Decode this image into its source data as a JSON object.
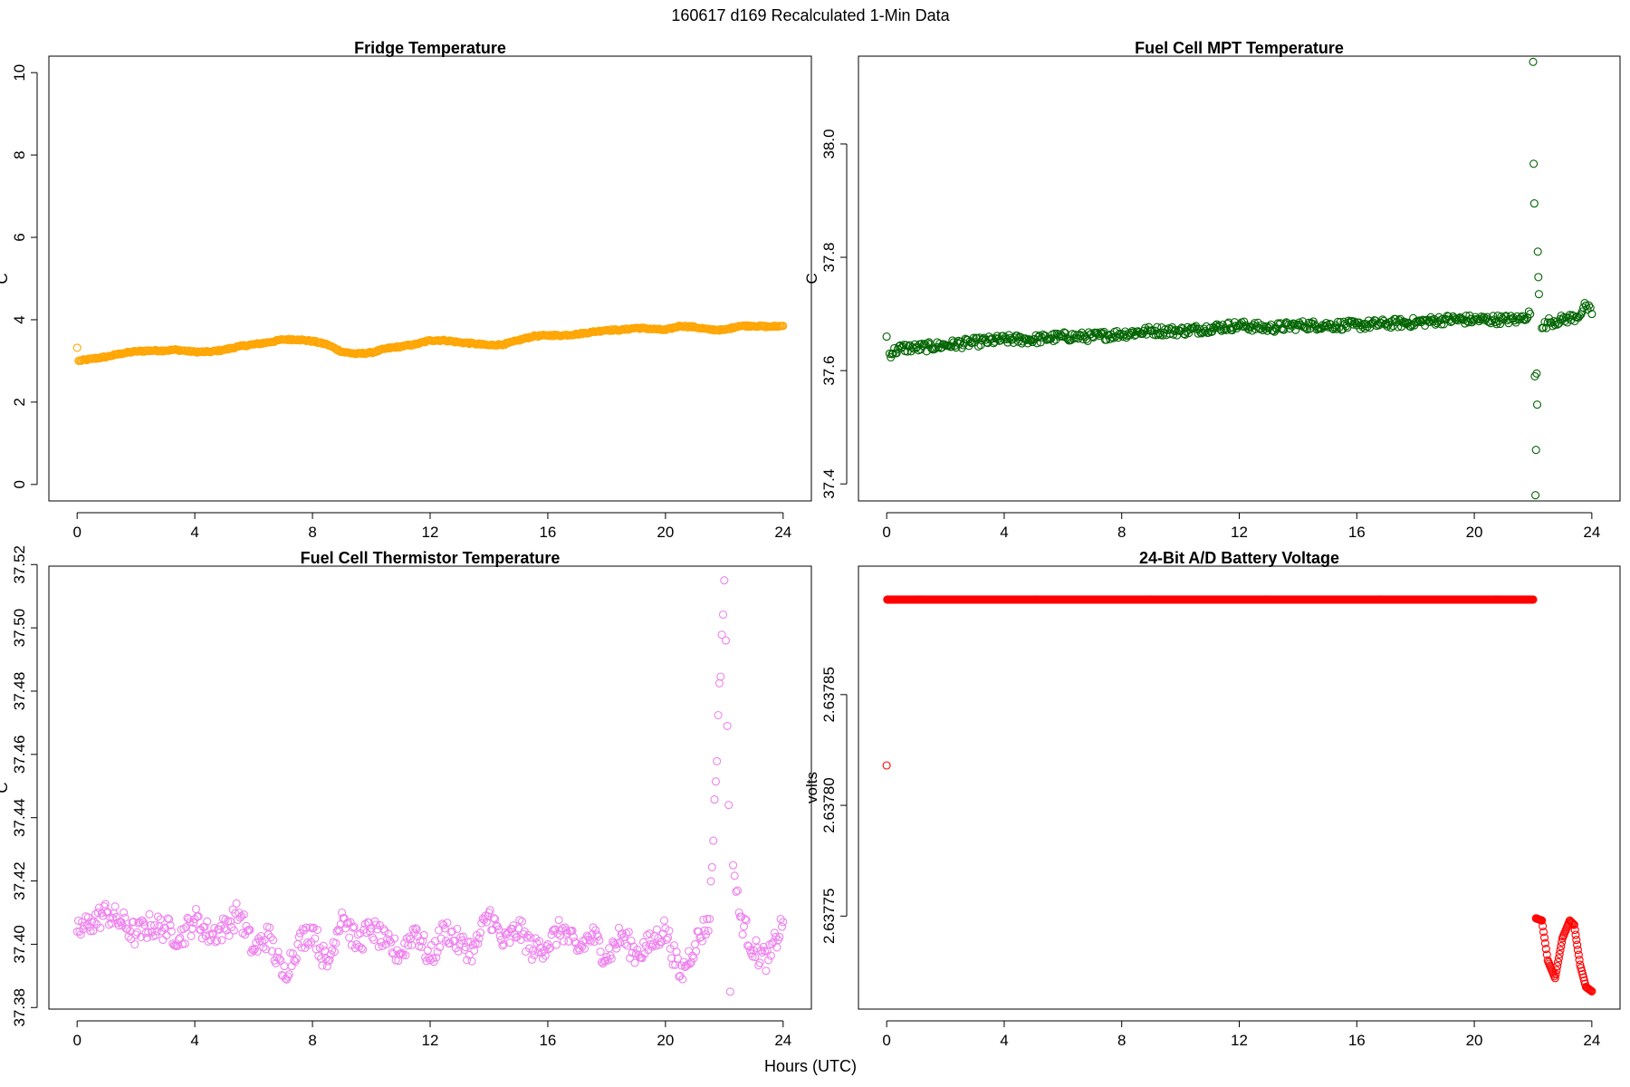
{
  "figure": {
    "suptitle": "160617   d169   Recalculated 1-Min Data",
    "xlabel": "Hours (UTC)"
  },
  "chart_data": [
    {
      "type": "scatter",
      "title": "Fridge Temperature",
      "xlabel": "Hours (UTC)",
      "ylabel": "C",
      "xlim": [
        -0.96,
        24.96
      ],
      "ylim": [
        -0.4,
        10.4
      ],
      "xticks": [
        0,
        4,
        8,
        12,
        16,
        20,
        24
      ],
      "yticks": [
        0,
        2,
        4,
        6,
        8,
        10
      ],
      "ytick_labels": [
        "0",
        "2",
        "4",
        "6",
        "8",
        "10"
      ],
      "color": "#FFA500",
      "series": [
        {
          "name": "Fridge Temperature",
          "x": [
            0,
            0.05,
            0.5,
            1,
            1.5,
            2,
            2.5,
            3,
            3.3,
            3.6,
            4,
            4.5,
            5,
            5.5,
            6,
            6.5,
            7,
            7.5,
            8,
            8.5,
            9,
            9.5,
            10,
            10.5,
            11,
            11.5,
            12,
            12.5,
            13,
            13.5,
            14,
            14.5,
            15,
            15.5,
            16,
            16.5,
            17,
            17.5,
            18,
            18.5,
            19,
            19.5,
            20,
            20.5,
            21,
            21.5,
            22,
            22.5,
            23,
            23.5,
            24
          ],
          "y": [
            3.32,
            3.0,
            3.05,
            3.1,
            3.18,
            3.23,
            3.25,
            3.25,
            3.27,
            3.25,
            3.22,
            3.22,
            3.27,
            3.35,
            3.4,
            3.45,
            3.52,
            3.52,
            3.48,
            3.4,
            3.22,
            3.17,
            3.2,
            3.3,
            3.35,
            3.4,
            3.5,
            3.5,
            3.45,
            3.42,
            3.38,
            3.4,
            3.5,
            3.6,
            3.62,
            3.62,
            3.65,
            3.7,
            3.75,
            3.75,
            3.8,
            3.78,
            3.75,
            3.85,
            3.82,
            3.76,
            3.75,
            3.85,
            3.85,
            3.83,
            3.85
          ]
        }
      ]
    },
    {
      "type": "scatter",
      "title": "Fuel Cell MPT Temperature",
      "xlabel": "Hours (UTC)",
      "ylabel": "C",
      "xlim": [
        -0.96,
        24.96
      ],
      "ylim": [
        37.37,
        38.155
      ],
      "xticks": [
        0,
        4,
        8,
        12,
        16,
        20,
        24
      ],
      "yticks": [
        37.4,
        37.6,
        37.8,
        38.0
      ],
      "ytick_labels": [
        "37.4",
        "37.6",
        "37.8",
        "38.0"
      ],
      "color": "#006400",
      "series": [
        {
          "name": "Fuel Cell MPT Temperature",
          "x": [
            0,
            0.1,
            0.5,
            1,
            2,
            3,
            4,
            5,
            6,
            7,
            8,
            9,
            10,
            11,
            12,
            13,
            14,
            15,
            16,
            17,
            18,
            19,
            20,
            21,
            21.5,
            21.9,
            22,
            22.02,
            22.04,
            22.06,
            22.08,
            22.1,
            22.12,
            22.14,
            22.16,
            22.18,
            22.2,
            22.3,
            22.5,
            23,
            23.5,
            23.8,
            24
          ],
          "y": [
            37.66,
            37.63,
            37.64,
            37.64,
            37.645,
            37.65,
            37.655,
            37.655,
            37.66,
            37.66,
            37.665,
            37.67,
            37.67,
            37.675,
            37.68,
            37.675,
            37.68,
            37.68,
            37.68,
            37.683,
            37.685,
            37.69,
            37.69,
            37.69,
            37.69,
            37.7,
            38.145,
            37.965,
            37.895,
            37.59,
            37.38,
            37.46,
            37.595,
            37.54,
            37.81,
            37.765,
            37.735,
            37.675,
            37.685,
            37.69,
            37.695,
            37.715,
            37.7
          ]
        }
      ]
    },
    {
      "type": "scatter",
      "title": "Fuel Cell Thermistor Temperature",
      "xlabel": "Hours (UTC)",
      "ylabel": "C",
      "xlim": [
        -0.96,
        24.96
      ],
      "ylim": [
        37.3795,
        37.5195
      ],
      "xticks": [
        0,
        4,
        8,
        12,
        16,
        20,
        24
      ],
      "yticks": [
        37.38,
        37.4,
        37.42,
        37.44,
        37.46,
        37.48,
        37.5,
        37.52
      ],
      "ytick_labels": [
        "37.38",
        "37.40",
        "37.42",
        "37.44",
        "37.46",
        "37.48",
        "37.50",
        "37.52"
      ],
      "color": "#EE82EE",
      "series": [
        {
          "name": "Fuel Cell Thermistor Temperature",
          "x": [
            0,
            0.5,
            1,
            1.5,
            2,
            2.5,
            3,
            3.5,
            4,
            4.5,
            5,
            5.5,
            6,
            6.5,
            7,
            7.5,
            8,
            8.5,
            9,
            9.5,
            10,
            10.5,
            11,
            11.5,
            12,
            12.5,
            13,
            13.5,
            14,
            14.5,
            15,
            15.5,
            16,
            16.5,
            17,
            17.5,
            18,
            18.5,
            19,
            19.5,
            20,
            20.5,
            21,
            21.5,
            22,
            22.05,
            22.1,
            22.15,
            22.2,
            22.3,
            22.5,
            23,
            23.5,
            24
          ],
          "y": [
            37.404,
            37.407,
            37.41,
            37.407,
            37.403,
            37.406,
            37.405,
            37.402,
            37.408,
            37.403,
            37.405,
            37.41,
            37.398,
            37.403,
            37.39,
            37.4,
            37.405,
            37.393,
            37.41,
            37.4,
            37.405,
            37.4,
            37.397,
            37.405,
            37.395,
            37.405,
            37.4,
            37.398,
            37.41,
            37.4,
            37.405,
            37.398,
            37.4,
            37.405,
            37.398,
            37.403,
            37.396,
            37.403,
            37.397,
            37.4,
            37.405,
            37.39,
            37.4,
            37.408,
            37.515,
            37.496,
            37.469,
            37.444,
            37.385,
            37.425,
            37.41,
            37.398,
            37.395,
            37.407
          ]
        }
      ]
    },
    {
      "type": "scatter",
      "title": "24-Bit A/D Battery Voltage",
      "xlabel": "Hours (UTC)",
      "ylabel": "volts",
      "xlim": [
        -0.96,
        24.96
      ],
      "ylim": [
        2.637708,
        2.637908
      ],
      "xticks": [
        0,
        4,
        8,
        12,
        16,
        20,
        24
      ],
      "yticks": [
        2.63775,
        2.6378,
        2.63785
      ],
      "ytick_labels": [
        "2.63775",
        "2.63780",
        "2.63785"
      ],
      "color": "#FF0000",
      "series": [
        {
          "name": "24-Bit A/D Battery Voltage",
          "x": [
            0,
            0.02,
            5,
            10,
            15,
            20,
            22.0,
            22.1,
            22.3,
            22.5,
            22.75,
            23.0,
            23.25,
            23.4,
            23.6,
            23.8,
            24.0
          ],
          "y": [
            2.637818,
            2.6378929,
            2.6378929,
            2.6378929,
            2.6378929,
            2.6378929,
            2.6378929,
            2.637749,
            2.637748,
            2.63773,
            2.637722,
            2.63774,
            2.637748,
            2.637746,
            2.637728,
            2.637718,
            2.637716
          ]
        }
      ]
    }
  ]
}
